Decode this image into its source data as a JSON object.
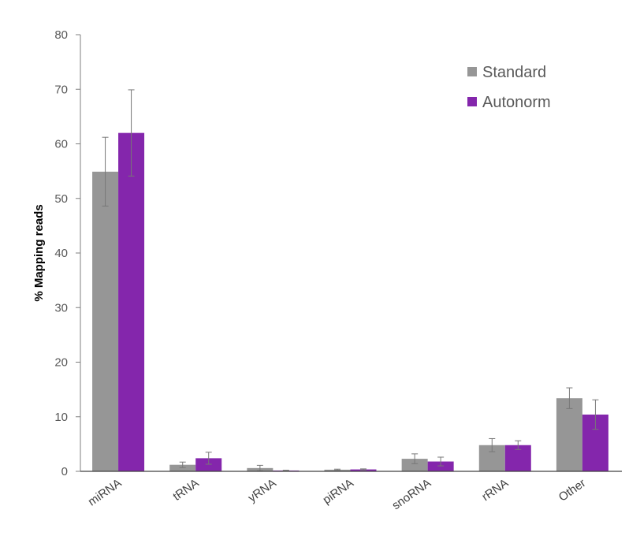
{
  "chart_data": {
    "type": "bar",
    "title": "",
    "xlabel": "",
    "ylabel": "% Mapping reads",
    "ylim": [
      0,
      80
    ],
    "yticks": [
      0,
      10,
      20,
      30,
      40,
      50,
      60,
      70,
      80
    ],
    "grid": false,
    "legend_position": "upper right",
    "categories": [
      "miRNA",
      "tRNA",
      "yRNA",
      "piRNA",
      "snoRNA",
      "rRNA",
      "Other"
    ],
    "series": [
      {
        "name": "Standard",
        "color": "#969696",
        "values": [
          54.9,
          1.2,
          0.6,
          0.3,
          2.3,
          4.8,
          13.4
        ],
        "error": [
          6.3,
          0.5,
          0.5,
          0.1,
          0.9,
          1.2,
          1.9
        ]
      },
      {
        "name": "Autonorm",
        "color": "#8426AC",
        "values": [
          62.0,
          2.4,
          0.15,
          0.35,
          1.8,
          4.8,
          10.4
        ],
        "error": [
          7.9,
          1.1,
          0.05,
          0.1,
          0.8,
          0.8,
          2.7
        ]
      }
    ]
  }
}
